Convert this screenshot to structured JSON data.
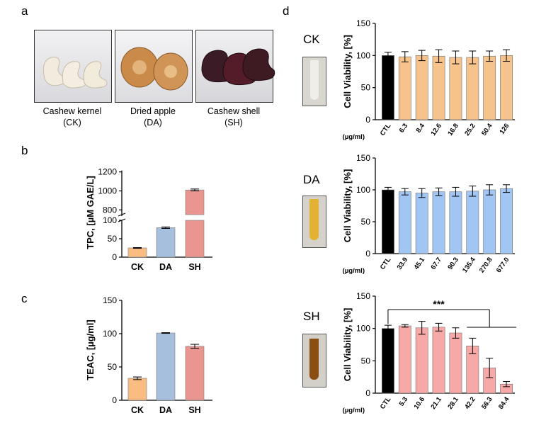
{
  "panels": {
    "a": "a",
    "b": "b",
    "c": "c",
    "d": "d"
  },
  "samples": [
    {
      "name": "Cashew kernel",
      "code": "(CK)"
    },
    {
      "name": "Dried apple",
      "code": "(DA)"
    },
    {
      "name": "Cashew shell",
      "code": "(SH)"
    }
  ],
  "side_labels": {
    "ck": "CK",
    "da": "DA",
    "sh": "SH"
  },
  "colors": {
    "ck": "#f9bd82",
    "da": "#a6bfdd",
    "sh": "#e99690",
    "viab_ck": "#f6c38c",
    "viab_da": "#a2c6f4",
    "viab_sh": "#f7a9a8",
    "ctl": "#000000"
  },
  "chart_data": [
    {
      "type": "bar",
      "id": "tpc",
      "title": "",
      "xlabel": "",
      "ylabel": "TPC, [µM GAE/L]",
      "categories": [
        "CK",
        "DA",
        "SH"
      ],
      "values": [
        25,
        80,
        1010
      ],
      "errors": [
        1,
        2,
        10
      ],
      "broken_axis": {
        "lower": [
          0,
          100
        ],
        "upper": [
          750,
          1250
        ]
      },
      "yticks_lower": [
        0,
        50,
        100
      ],
      "yticks_upper": [
        800,
        1000,
        1200
      ]
    },
    {
      "type": "bar",
      "id": "teac",
      "title": "",
      "xlabel": "",
      "ylabel": "TEAC, [µg/ml]",
      "categories": [
        "CK",
        "DA",
        "SH"
      ],
      "values": [
        33,
        101,
        81
      ],
      "errors": [
        2,
        0.5,
        3
      ],
      "ylim": [
        0,
        150
      ],
      "yticks": [
        0,
        50,
        100,
        150
      ]
    },
    {
      "type": "bar",
      "id": "viab_ck",
      "title": "",
      "ylabel": "Cell Viability, [%]",
      "unit_label": "(µg/ml)",
      "categories": [
        "CTL",
        "6.3",
        "8.4",
        "12.6",
        "16.8",
        "25.2",
        "50.4",
        "126"
      ],
      "values": [
        100,
        98,
        100,
        99,
        97,
        97,
        99,
        100
      ],
      "errors": [
        5,
        8,
        8,
        10,
        10,
        10,
        8,
        9
      ],
      "ylim": [
        0,
        150
      ],
      "yticks": [
        0,
        50,
        100,
        150
      ]
    },
    {
      "type": "bar",
      "id": "viab_da",
      "title": "",
      "ylabel": "Cell Viability, [%]",
      "unit_label": "(µg/ml)",
      "categories": [
        "CTL",
        "33.9",
        "45.1",
        "67.7",
        "90.3",
        "135.4",
        "270.8",
        "677.0"
      ],
      "values": [
        100,
        97,
        95,
        97,
        97,
        98,
        100,
        102
      ],
      "errors": [
        4,
        5,
        7,
        6,
        7,
        8,
        8,
        6
      ],
      "ylim": [
        0,
        150
      ],
      "yticks": [
        0,
        50,
        100,
        150
      ]
    },
    {
      "type": "bar",
      "id": "viab_sh",
      "title": "",
      "ylabel": "Cell Viability, [%]",
      "unit_label": "(µg/ml)",
      "categories": [
        "CTL",
        "5.3",
        "10.6",
        "21.1",
        "28.1",
        "42.2",
        "56.3",
        "84.4"
      ],
      "values": [
        100,
        104,
        101,
        102,
        93,
        73,
        39,
        14
      ],
      "errors": [
        5,
        2,
        10,
        6,
        8,
        12,
        15,
        4
      ],
      "ylim": [
        0,
        150
      ],
      "yticks": [
        0,
        50,
        100,
        150
      ],
      "annotation": "***"
    }
  ]
}
